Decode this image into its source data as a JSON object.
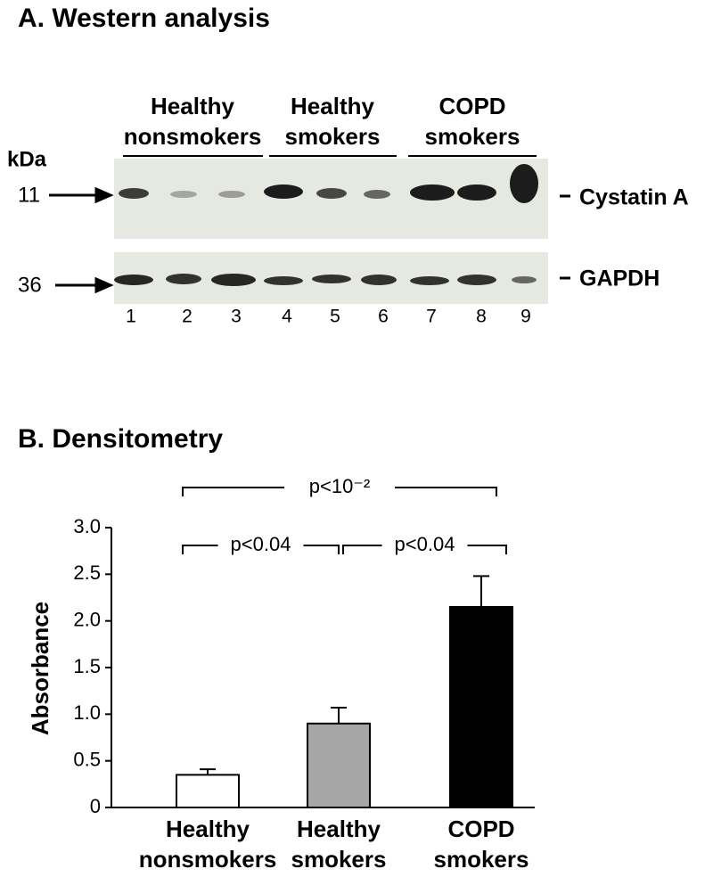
{
  "panel_a": {
    "title": "A. Western analysis",
    "groups": [
      "Healthy nonsmokers",
      "Healthy smokers",
      "COPD smokers"
    ],
    "kda_label": "kDa",
    "markers": [
      {
        "kda": "11",
        "protein": "Cystatin A"
      },
      {
        "kda": "36",
        "protein": "GAPDH"
      }
    ],
    "lanes": [
      1,
      2,
      3,
      4,
      5,
      6,
      7,
      8,
      9
    ]
  },
  "chart_data": {
    "type": "bar",
    "title": "B. Densitometry",
    "y_label": "Absorbance",
    "categories": [
      "Healthy nonsmokers",
      "Healthy smokers",
      "COPD smokers"
    ],
    "values": [
      0.35,
      0.9,
      2.15
    ],
    "errors": [
      0.06,
      0.17,
      0.33
    ],
    "colors": [
      "#ffffff",
      "#a6a6a6",
      "#000000"
    ],
    "ylim": [
      0,
      3
    ],
    "yticks": [
      0,
      0.5,
      {
        "value": 1,
        "label": "1.0"
      },
      1.5,
      {
        "value": 2,
        "label": "2.0"
      },
      2.5,
      {
        "value": 3,
        "label": "3.0"
      }
    ],
    "annotations": [
      "p<10⁻²",
      "p<0.04",
      "p<0.04"
    ]
  }
}
